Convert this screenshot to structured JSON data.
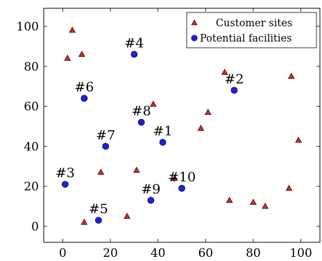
{
  "chart_data": {
    "type": "scatter",
    "xlim": [
      -8,
      108
    ],
    "ylim": [
      -8,
      109
    ],
    "xticks": [
      0,
      20,
      40,
      60,
      80,
      100
    ],
    "yticks": [
      0,
      20,
      40,
      60,
      80,
      100
    ],
    "grid": false,
    "legend": {
      "placement": "top-right"
    },
    "series": [
      {
        "name": "Customer sites",
        "marker": "triangle",
        "color": "#d62728",
        "points": [
          [
            4,
            98
          ],
          [
            2,
            84
          ],
          [
            8,
            86
          ],
          [
            38,
            61
          ],
          [
            61,
            57
          ],
          [
            58,
            49
          ],
          [
            68,
            77
          ],
          [
            96,
            75
          ],
          [
            99,
            43
          ],
          [
            16,
            27
          ],
          [
            31,
            28
          ],
          [
            47,
            24
          ],
          [
            70,
            13
          ],
          [
            80,
            12
          ],
          [
            85,
            10
          ],
          [
            95,
            19
          ],
          [
            9,
            2
          ],
          [
            27,
            5
          ]
        ]
      },
      {
        "name": "Potential facilities",
        "marker": "circle",
        "color": "#1f1fe0",
        "points": [
          {
            "x": 30,
            "y": 86,
            "label": "#4"
          },
          {
            "x": 9,
            "y": 64,
            "label": "#6"
          },
          {
            "x": 72,
            "y": 68,
            "label": "#2"
          },
          {
            "x": 33,
            "y": 52,
            "label": "#8"
          },
          {
            "x": 18,
            "y": 40,
            "label": "#7"
          },
          {
            "x": 42,
            "y": 42,
            "label": "#1"
          },
          {
            "x": 1,
            "y": 21,
            "label": "#3"
          },
          {
            "x": 37,
            "y": 13,
            "label": "#9"
          },
          {
            "x": 50,
            "y": 19,
            "label": "#10"
          },
          {
            "x": 15,
            "y": 3,
            "label": "#5"
          }
        ]
      }
    ]
  }
}
